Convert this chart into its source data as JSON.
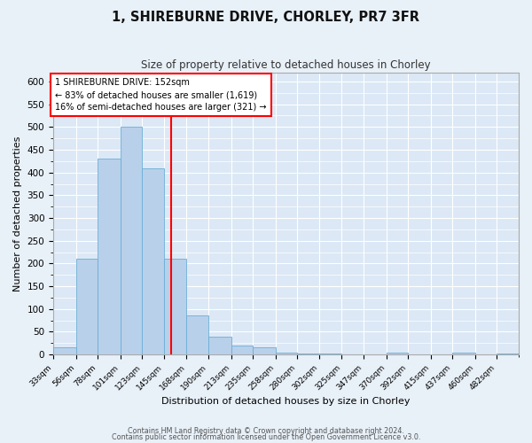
{
  "title1": "1, SHIREBURNE DRIVE, CHORLEY, PR7 3FR",
  "title2": "Size of property relative to detached houses in Chorley",
  "xlabel": "Distribution of detached houses by size in Chorley",
  "ylabel": "Number of detached properties",
  "bar_color": "#b8d0ea",
  "bar_edge_color": "#6aaed6",
  "background_color": "#dce8f5",
  "fig_background_color": "#e8f0f8",
  "grid_color": "#ffffff",
  "bin_labels": [
    "33sqm",
    "56sqm",
    "78sqm",
    "101sqm",
    "123sqm",
    "145sqm",
    "168sqm",
    "190sqm",
    "213sqm",
    "235sqm",
    "258sqm",
    "280sqm",
    "302sqm",
    "325sqm",
    "347sqm",
    "370sqm",
    "392sqm",
    "415sqm",
    "437sqm",
    "460sqm",
    "482sqm"
  ],
  "bar_heights": [
    15,
    210,
    430,
    500,
    410,
    210,
    85,
    40,
    20,
    15,
    5,
    3,
    2,
    0,
    0,
    5,
    0,
    0,
    5,
    0,
    3
  ],
  "bin_edges": [
    33,
    56,
    78,
    101,
    123,
    145,
    168,
    190,
    213,
    235,
    258,
    280,
    302,
    325,
    347,
    370,
    392,
    415,
    437,
    460,
    482,
    504
  ],
  "red_line_x": 152,
  "ann_line1": "1 SHIREBURNE DRIVE: 152sqm",
  "ann_line2": "← 83% of detached houses are smaller (1,619)",
  "ann_line3": "16% of semi-detached houses are larger (321) →",
  "ylim": [
    0,
    620
  ],
  "yticks": [
    0,
    50,
    100,
    150,
    200,
    250,
    300,
    350,
    400,
    450,
    500,
    550,
    600
  ],
  "footer1": "Contains HM Land Registry data © Crown copyright and database right 2024.",
  "footer2": "Contains public sector information licensed under the Open Government Licence v3.0."
}
